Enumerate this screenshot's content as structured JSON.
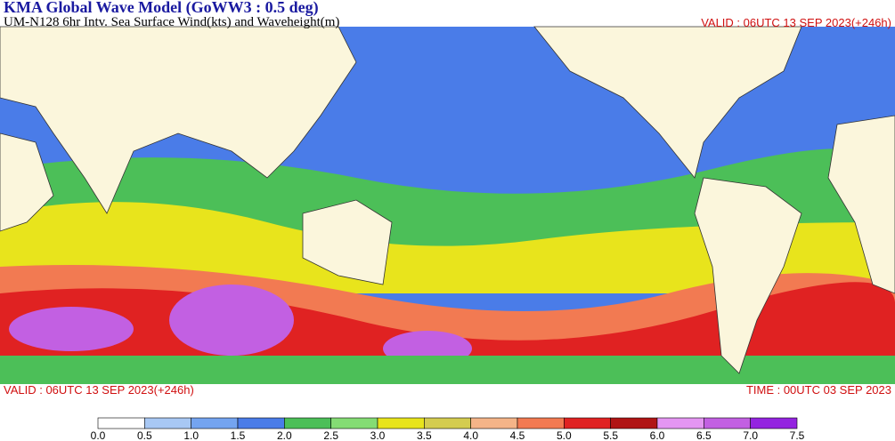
{
  "header": {
    "title": "KMA  Global Wave Model (GoWW3 : 0.5 deg)",
    "subtitle": "UM-N128  6hr Intv. Sea Surface Wind(kts) and Waveheight(m)",
    "valid_top": "VALID : 06UTC 13 SEP 2023(+246h)"
  },
  "footer": {
    "valid": "VALID : 06UTC 13 SEP 2023(+246h)",
    "time": "TIME : 00UTC 03 SEP 2023"
  },
  "legend": {
    "colors": [
      "#ffffff",
      "#a8c8f4",
      "#74a4f0",
      "#4a7ce8",
      "#4cbf58",
      "#84dc74",
      "#e8e41c",
      "#d4cc50",
      "#f4b488",
      "#f27a52",
      "#e02222",
      "#b01414",
      "#e496f2",
      "#c260e2",
      "#9424e0"
    ],
    "ticks": [
      {
        "value": 0,
        "label": "0.0"
      },
      0.5,
      {
        "value": 1,
        "label": "1.0"
      },
      1.5,
      {
        "value": 2,
        "label": "2.0"
      },
      2.5,
      {
        "value": 3,
        "label": "3.0"
      },
      3.5,
      {
        "value": 4,
        "label": "4.0"
      },
      4.5,
      {
        "value": 5,
        "label": "5.0"
      },
      5.5,
      {
        "value": 6,
        "label": "6.0"
      },
      6.5,
      {
        "value": 7,
        "label": "7.0"
      },
      7.5
    ]
  }
}
